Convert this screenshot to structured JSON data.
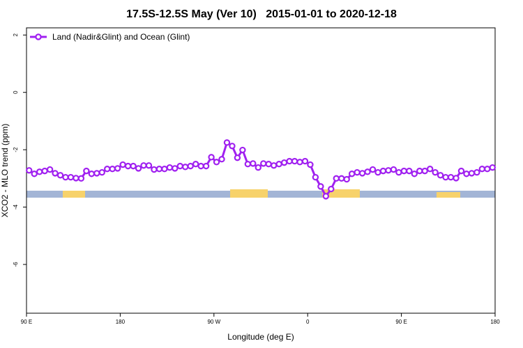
{
  "chart_data": {
    "type": "line",
    "title": "17.5S-12.5S May (Ver 10)   2015-01-01 to 2020-12-18",
    "xlabel": "Longitude (deg E)",
    "ylabel": "XCO2 - MLO trend (ppm)",
    "x": [
      92.5,
      97.5,
      102.5,
      107.5,
      112.5,
      117.5,
      122.5,
      127.5,
      132.5,
      137.5,
      142.5,
      147.5,
      152.5,
      157.5,
      162.5,
      167.5,
      172.5,
      177.5,
      182.5,
      187.5,
      192.5,
      197.5,
      202.5,
      207.5,
      212.5,
      217.5,
      222.5,
      227.5,
      232.5,
      237.5,
      242.5,
      247.5,
      252.5,
      257.5,
      262.5,
      267.5,
      272.5,
      277.5,
      282.5,
      287.5,
      292.5,
      297.5,
      302.5,
      307.5,
      312.5,
      317.5,
      322.5,
      327.5,
      332.5,
      337.5,
      342.5,
      347.5,
      352.5,
      357.5,
      362.5,
      367.5,
      372.5,
      377.5,
      382.5,
      387.5,
      392.5,
      397.5,
      402.5,
      407.5,
      412.5,
      417.5,
      422.5,
      427.5,
      432.5,
      437.5,
      442.5,
      447.5,
      452.5,
      457.5,
      462.5,
      467.5,
      472.5,
      477.5,
      482.5,
      487.5,
      492.5,
      497.5,
      502.5,
      507.5,
      512.5,
      517.5,
      522.5,
      527.5,
      532.5,
      537.5
    ],
    "series": [
      {
        "name": "Land (Nadir&Glint) and Ocean (Glint)",
        "color": "#a020f0",
        "values": [
          -2.72,
          -2.84,
          -2.77,
          -2.74,
          -2.69,
          -2.82,
          -2.89,
          -2.96,
          -2.96,
          -2.99,
          -3.0,
          -2.74,
          -2.84,
          -2.82,
          -2.79,
          -2.67,
          -2.67,
          -2.65,
          -2.52,
          -2.57,
          -2.57,
          -2.65,
          -2.55,
          -2.55,
          -2.69,
          -2.67,
          -2.67,
          -2.62,
          -2.65,
          -2.57,
          -2.6,
          -2.57,
          -2.5,
          -2.57,
          -2.57,
          -2.26,
          -2.43,
          -2.33,
          -1.75,
          -1.87,
          -2.28,
          -2.01,
          -2.5,
          -2.48,
          -2.62,
          -2.48,
          -2.5,
          -2.55,
          -2.5,
          -2.45,
          -2.4,
          -2.4,
          -2.43,
          -2.4,
          -2.52,
          -2.96,
          -3.28,
          -3.62,
          -3.37,
          -3.0,
          -3.0,
          -3.03,
          -2.84,
          -2.79,
          -2.82,
          -2.77,
          -2.69,
          -2.79,
          -2.74,
          -2.72,
          -2.69,
          -2.79,
          -2.74,
          -2.74,
          -2.84,
          -2.74,
          -2.74,
          -2.67,
          -2.79,
          -2.89,
          -2.96,
          -2.96,
          -2.99,
          -2.74,
          -2.84,
          -2.82,
          -2.79,
          -2.67,
          -2.67,
          -2.62
        ]
      }
    ],
    "xlim": [
      90,
      540
    ],
    "xticks": [
      {
        "value": 90,
        "label": "90 E"
      },
      180,
      {
        "value": 270,
        "label": "90 W"
      },
      {
        "value": 360,
        "label": "0"
      },
      {
        "value": 450,
        "label": "90 E"
      },
      {
        "value": 540,
        "label": "180"
      }
    ],
    "ylim": [
      -7.7,
      2.25
    ],
    "yticks": [
      2,
      0,
      -2,
      -4,
      -6
    ],
    "legend": "top-left"
  }
}
